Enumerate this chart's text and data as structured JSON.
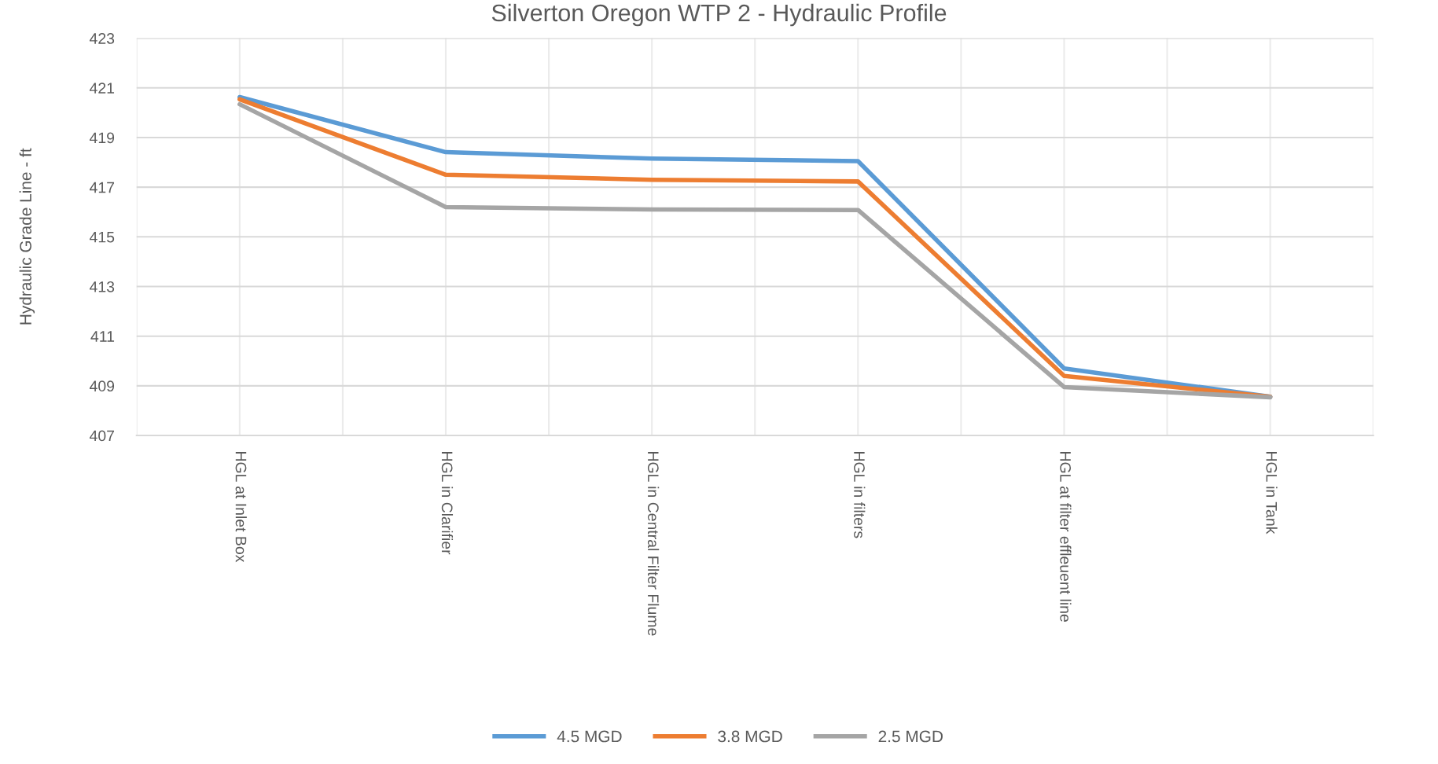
{
  "chart_data": {
    "type": "line",
    "title": "Silverton Oregon WTP 2 - Hydraulic Profile",
    "ylabel": "Hydraulic Grade Line - ft",
    "categories": [
      "HGL at Inlet Box",
      "HGL in Clarifier",
      "HGL in Central Filter Flume",
      "HGL in filters",
      "HGL at filter effleuent line",
      "HGL in Tank"
    ],
    "series": [
      {
        "name": "4.5 MGD",
        "color": "#5b9bd5",
        "values": [
          420.63,
          418.41,
          418.15,
          418.05,
          409.7,
          408.56
        ]
      },
      {
        "name": "3.8 MGD",
        "color": "#ed7d31",
        "values": [
          420.54,
          417.5,
          417.3,
          417.23,
          409.4,
          408.56
        ]
      },
      {
        "name": "2.5 MGD",
        "color": "#a5a5a5",
        "values": [
          420.34,
          416.2,
          416.1,
          416.08,
          408.95,
          408.54
        ]
      }
    ],
    "ylim": [
      407,
      423
    ],
    "yticks": [
      407,
      409,
      411,
      413,
      415,
      417,
      419,
      421,
      423
    ],
    "grid": true,
    "legend": "bottom",
    "marker": "none",
    "line_style": "solid"
  }
}
